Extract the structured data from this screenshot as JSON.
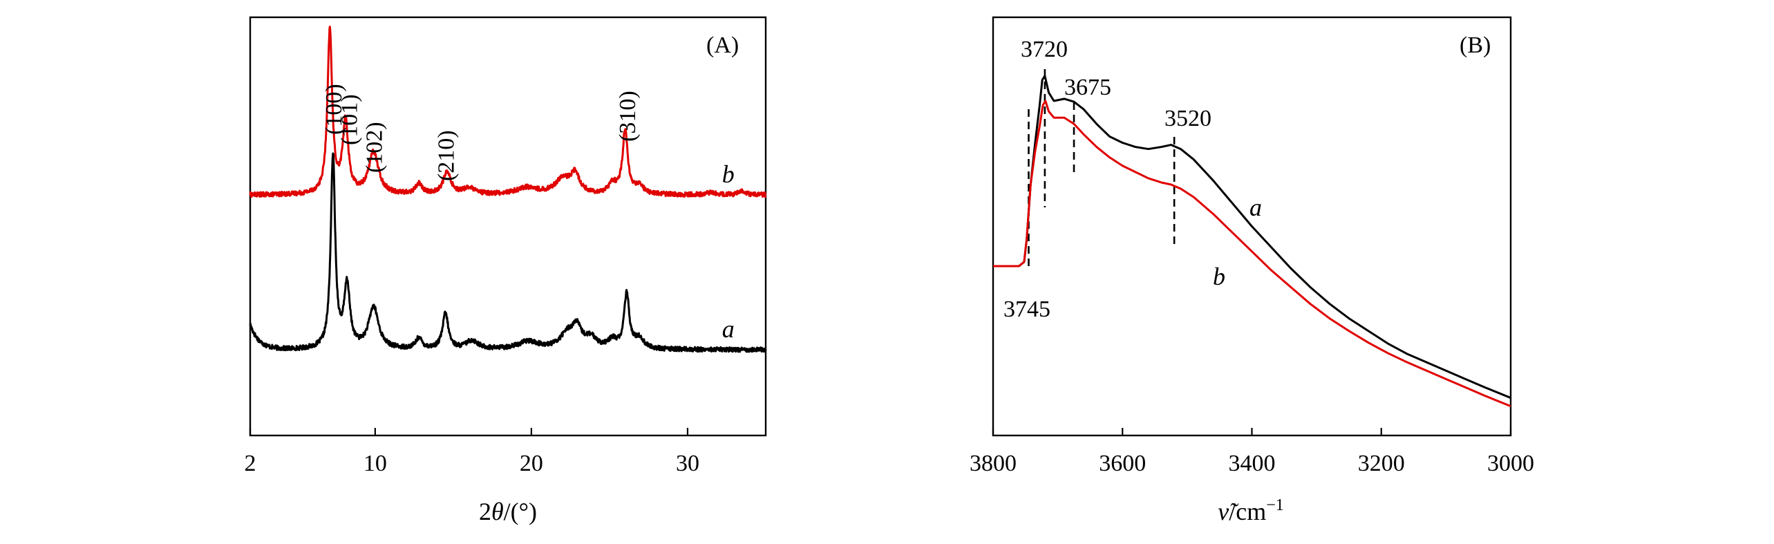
{
  "chart_data": [
    {
      "type": "line",
      "panel_label": "(A)",
      "xlabel_prefix": "2",
      "xlabel_symbol": "θ",
      "xlabel_suffix": "/(°)",
      "ylabel": "",
      "xlim": [
        2,
        35
      ],
      "xticks": [
        {
          "value": 2,
          "label": "2"
        },
        {
          "value": 10,
          "label": "10"
        },
        {
          "value": 20,
          "label": "20"
        },
        {
          "value": 30,
          "label": "30"
        }
      ],
      "y_axis_ticks": false,
      "series": [
        {
          "label": "a",
          "color": "#000000",
          "baseline": 0.205,
          "start_rise": 0.06,
          "peaks": [
            [
              7.3,
              0.46,
              0.17
            ],
            [
              8.2,
              0.15,
              0.22
            ],
            [
              9.9,
              0.1,
              0.38
            ],
            [
              12.8,
              0.025,
              0.25
            ],
            [
              14.5,
              0.085,
              0.22
            ],
            [
              16.2,
              0.02,
              0.45
            ],
            [
              19.8,
              0.018,
              0.8
            ],
            [
              22.3,
              0.035,
              0.55
            ],
            [
              22.9,
              0.045,
              0.35
            ],
            [
              23.8,
              0.025,
              0.5
            ],
            [
              25.2,
              0.02,
              0.3
            ],
            [
              26.1,
              0.13,
              0.2
            ],
            [
              26.9,
              0.025,
              0.35
            ]
          ]
        },
        {
          "label": "b",
          "color": "#e00000",
          "baseline": 0.575,
          "start_rise": 0.0,
          "peaks": [
            [
              7.1,
              0.39,
              0.18
            ],
            [
              8.1,
              0.17,
              0.22
            ],
            [
              9.9,
              0.1,
              0.38
            ],
            [
              12.8,
              0.025,
              0.25
            ],
            [
              14.6,
              0.052,
              0.3
            ],
            [
              16.0,
              0.015,
              0.45
            ],
            [
              19.7,
              0.016,
              0.8
            ],
            [
              22.0,
              0.035,
              0.6
            ],
            [
              22.8,
              0.045,
              0.35
            ],
            [
              25.2,
              0.025,
              0.3
            ],
            [
              26.0,
              0.15,
              0.2
            ],
            [
              26.9,
              0.02,
              0.35
            ],
            [
              31.5,
              0.006,
              0.3
            ],
            [
              33.5,
              0.008,
              0.3
            ]
          ]
        }
      ],
      "annotations": [
        {
          "text": "(100)",
          "x": 7.3
        },
        {
          "text": "(101)",
          "x": 8.3
        },
        {
          "text": "(102)",
          "x": 9.9
        },
        {
          "text": "(210)",
          "x": 14.5
        },
        {
          "text": "(310)",
          "x": 26.1
        }
      ]
    },
    {
      "type": "line",
      "panel_label": "(B)",
      "xlabel_symbol": "ν̃",
      "xlabel_suffix": "/cm",
      "xlabel_exponent": "−1",
      "ylabel": "",
      "xlim": [
        3800,
        3000
      ],
      "xticks": [
        {
          "value": 3800,
          "label": "3800"
        },
        {
          "value": 3600,
          "label": "3600"
        },
        {
          "value": 3400,
          "label": "3400"
        },
        {
          "value": 3200,
          "label": "3200"
        },
        {
          "value": 3000,
          "label": "3000"
        }
      ],
      "y_axis_ticks": false,
      "series": [
        {
          "label": "a",
          "color": "#000000",
          "points": [
            [
              3800,
              0.405
            ],
            [
              3760,
              0.405
            ],
            [
              3752,
              0.415
            ],
            [
              3748,
              0.47
            ],
            [
              3742,
              0.6
            ],
            [
              3735,
              0.7
            ],
            [
              3728,
              0.79
            ],
            [
              3724,
              0.85
            ],
            [
              3720,
              0.86
            ],
            [
              3714,
              0.82
            ],
            [
              3706,
              0.8
            ],
            [
              3690,
              0.805
            ],
            [
              3675,
              0.798
            ],
            [
              3660,
              0.78
            ],
            [
              3640,
              0.745
            ],
            [
              3620,
              0.715
            ],
            [
              3600,
              0.7
            ],
            [
              3580,
              0.69
            ],
            [
              3560,
              0.685
            ],
            [
              3540,
              0.69
            ],
            [
              3525,
              0.695
            ],
            [
              3510,
              0.685
            ],
            [
              3490,
              0.66
            ],
            [
              3460,
              0.61
            ],
            [
              3430,
              0.555
            ],
            [
              3400,
              0.5
            ],
            [
              3370,
              0.45
            ],
            [
              3340,
              0.4
            ],
            [
              3310,
              0.355
            ],
            [
              3280,
              0.315
            ],
            [
              3250,
              0.28
            ],
            [
              3220,
              0.25
            ],
            [
              3190,
              0.22
            ],
            [
              3160,
              0.195
            ],
            [
              3130,
              0.175
            ],
            [
              3100,
              0.155
            ],
            [
              3070,
              0.135
            ],
            [
              3040,
              0.115
            ],
            [
              3000,
              0.09
            ]
          ]
        },
        {
          "label": "b",
          "color": "#e00000",
          "points": [
            [
              3800,
              0.405
            ],
            [
              3760,
              0.405
            ],
            [
              3752,
              0.415
            ],
            [
              3748,
              0.47
            ],
            [
              3742,
              0.6
            ],
            [
              3735,
              0.68
            ],
            [
              3728,
              0.74
            ],
            [
              3723,
              0.79
            ],
            [
              3719,
              0.8
            ],
            [
              3714,
              0.775
            ],
            [
              3706,
              0.76
            ],
            [
              3690,
              0.76
            ],
            [
              3675,
              0.745
            ],
            [
              3660,
              0.72
            ],
            [
              3640,
              0.69
            ],
            [
              3620,
              0.665
            ],
            [
              3600,
              0.645
            ],
            [
              3580,
              0.63
            ],
            [
              3560,
              0.615
            ],
            [
              3540,
              0.605
            ],
            [
              3525,
              0.6
            ],
            [
              3510,
              0.59
            ],
            [
              3490,
              0.57
            ],
            [
              3460,
              0.53
            ],
            [
              3430,
              0.485
            ],
            [
              3400,
              0.44
            ],
            [
              3370,
              0.395
            ],
            [
              3340,
              0.355
            ],
            [
              3310,
              0.315
            ],
            [
              3280,
              0.28
            ],
            [
              3250,
              0.25
            ],
            [
              3220,
              0.222
            ],
            [
              3190,
              0.197
            ],
            [
              3160,
              0.175
            ],
            [
              3130,
              0.155
            ],
            [
              3100,
              0.135
            ],
            [
              3070,
              0.115
            ],
            [
              3040,
              0.095
            ],
            [
              3000,
              0.07
            ]
          ]
        }
      ],
      "markers": [
        {
          "x": 3745,
          "label": "3745",
          "label_pos": "below"
        },
        {
          "x": 3720,
          "label": "3720",
          "label_pos": "above"
        },
        {
          "x": 3675,
          "label": "3675",
          "label_pos": "above"
        },
        {
          "x": 3520,
          "label": "3520",
          "label_pos": "above"
        }
      ]
    }
  ]
}
